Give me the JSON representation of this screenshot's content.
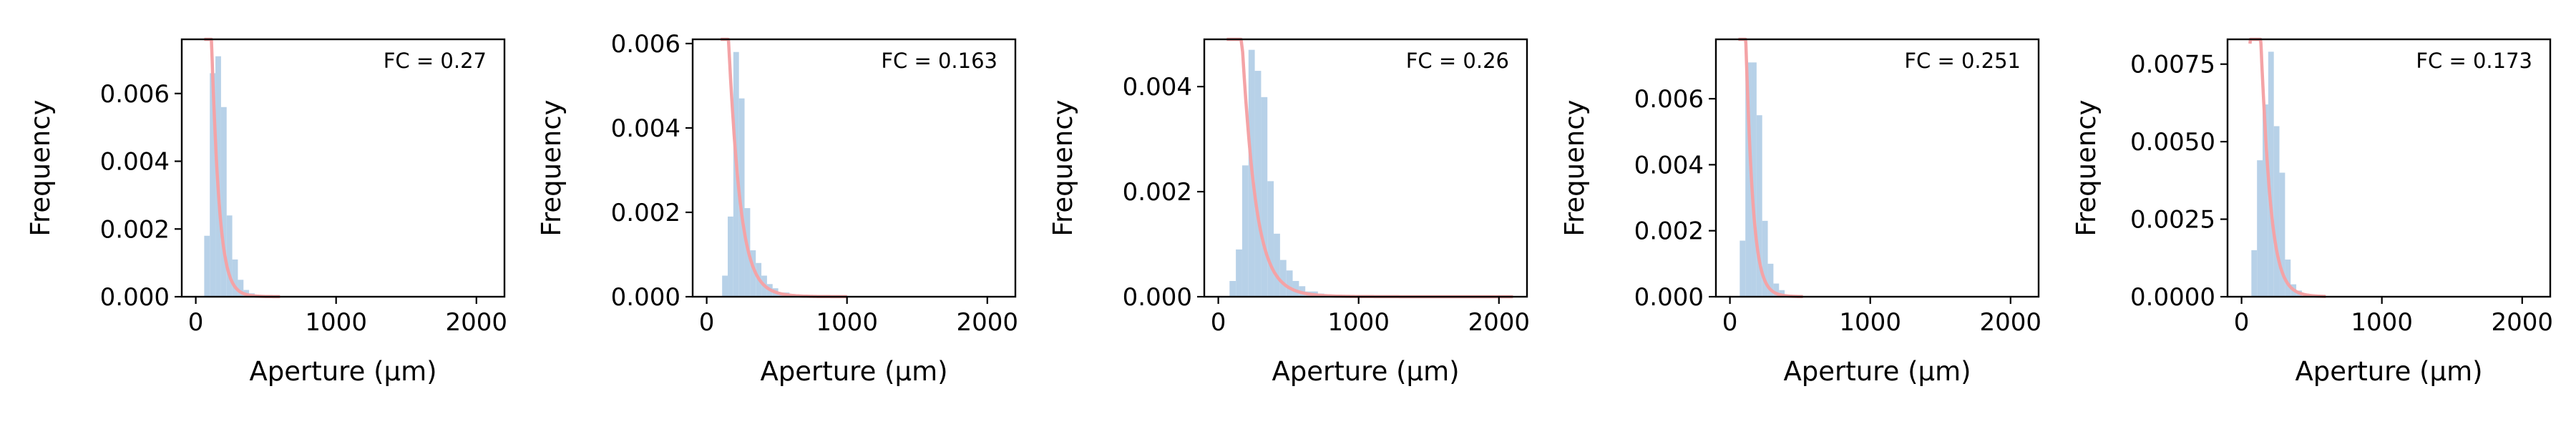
{
  "colors": {
    "histogram": "#b7d1e8",
    "fit_line": "#f4a3a6",
    "axes": "#000000"
  },
  "chart_data": [
    {
      "type": "histogram",
      "xlabel": "Aperture (μm)",
      "ylabel": "Frequency",
      "annotation": "FC = 0.27",
      "xlim": [
        -100,
        2200
      ],
      "ylim": [
        0,
        0.0076
      ],
      "xticks": [
        0,
        1000,
        2000
      ],
      "yticks": [
        0.0,
        0.002,
        0.004,
        0.006
      ],
      "ytick_labels": [
        "0.000",
        "0.002",
        "0.004",
        "0.006"
      ],
      "bin_width": 40,
      "bins": [
        [
          60,
          0.0018
        ],
        [
          100,
          0.0066
        ],
        [
          140,
          0.0071
        ],
        [
          180,
          0.0056
        ],
        [
          220,
          0.0024
        ],
        [
          260,
          0.0011
        ],
        [
          300,
          0.0005
        ],
        [
          340,
          0.0002
        ],
        [
          380,
          0.0001
        ],
        [
          420,
          5e-05
        ]
      ],
      "fit": {
        "mode": 120,
        "peak": 0.0066,
        "sigma": 0.5,
        "x_start": 60,
        "x_end": 600
      }
    },
    {
      "type": "histogram",
      "xlabel": "Aperture (μm)",
      "ylabel": "Frequency",
      "annotation": "FC = 0.163",
      "xlim": [
        -100,
        2200
      ],
      "ylim": [
        0,
        0.0061
      ],
      "xticks": [
        0,
        1000,
        2000
      ],
      "yticks": [
        0.0,
        0.002,
        0.004,
        0.006
      ],
      "ytick_labels": [
        "0.000",
        "0.002",
        "0.004",
        "0.006"
      ],
      "bin_width": 40,
      "bins": [
        [
          110,
          0.0005
        ],
        [
          150,
          0.0019
        ],
        [
          190,
          0.0058
        ],
        [
          230,
          0.0047
        ],
        [
          270,
          0.0021
        ],
        [
          310,
          0.0011
        ],
        [
          350,
          0.0008
        ],
        [
          390,
          0.0005
        ],
        [
          430,
          0.0003
        ],
        [
          470,
          0.0002
        ],
        [
          510,
          0.0001
        ],
        [
          550,
          0.0001
        ],
        [
          590,
          5e-05
        ]
      ],
      "fit": {
        "mode": 175,
        "peak": 0.0049,
        "sigma": 0.55,
        "x_start": 100,
        "x_end": 1000
      }
    },
    {
      "type": "histogram",
      "xlabel": "Aperture (μm)",
      "ylabel": "Frequency",
      "annotation": "FC = 0.26",
      "xlim": [
        -100,
        2200
      ],
      "ylim": [
        0,
        0.0049
      ],
      "xticks": [
        0,
        1000,
        2000
      ],
      "yticks": [
        0.0,
        0.002,
        0.004
      ],
      "ytick_labels": [
        "0.000",
        "0.002",
        "0.004"
      ],
      "bin_width": 45,
      "bins": [
        [
          80,
          0.0003
        ],
        [
          125,
          0.0009
        ],
        [
          170,
          0.0025
        ],
        [
          215,
          0.0047
        ],
        [
          260,
          0.0043
        ],
        [
          305,
          0.0038
        ],
        [
          350,
          0.0022
        ],
        [
          395,
          0.0012
        ],
        [
          440,
          0.0007
        ],
        [
          485,
          0.0005
        ],
        [
          530,
          0.0003
        ],
        [
          575,
          0.0002
        ],
        [
          620,
          0.0001
        ],
        [
          665,
          0.0001
        ],
        [
          710,
          6e-05
        ],
        [
          755,
          4e-05
        ],
        [
          800,
          3e-05
        ]
      ],
      "fit": {
        "mode": 200,
        "peak": 0.0036,
        "sigma": 0.6,
        "x_start": 60,
        "x_end": 2100
      }
    },
    {
      "type": "histogram",
      "xlabel": "Aperture (μm)",
      "ylabel": "Frequency",
      "annotation": "FC = 0.251",
      "xlim": [
        -100,
        2200
      ],
      "ylim": [
        0,
        0.0078
      ],
      "xticks": [
        0,
        1000,
        2000
      ],
      "yticks": [
        0.0,
        0.002,
        0.004,
        0.006
      ],
      "ytick_labels": [
        "0.000",
        "0.002",
        "0.004",
        "0.006"
      ],
      "bin_width": 40,
      "bins": [
        [
          70,
          0.0017
        ],
        [
          110,
          0.0071
        ],
        [
          150,
          0.0071
        ],
        [
          190,
          0.0055
        ],
        [
          230,
          0.0023
        ],
        [
          270,
          0.001
        ],
        [
          310,
          0.0004
        ],
        [
          350,
          0.0002
        ]
      ],
      "fit": {
        "mode": 115,
        "peak": 0.0075,
        "sigma": 0.5,
        "x_start": 60,
        "x_end": 520
      }
    },
    {
      "type": "histogram",
      "xlabel": "Aperture (μm)",
      "ylabel": "Frequency",
      "annotation": "FC = 0.173",
      "xlim": [
        -100,
        2200
      ],
      "ylim": [
        0,
        0.0083
      ],
      "xticks": [
        0,
        1000,
        2000
      ],
      "yticks": [
        0.0,
        0.0025,
        0.005,
        0.0075
      ],
      "ytick_labels": [
        "0.0000",
        "0.0025",
        "0.0050",
        "0.0075"
      ],
      "bin_width": 40,
      "bins": [
        [
          70,
          0.0015
        ],
        [
          110,
          0.0044
        ],
        [
          150,
          0.0062
        ],
        [
          190,
          0.0079
        ],
        [
          230,
          0.0055
        ],
        [
          270,
          0.004
        ],
        [
          310,
          0.0012
        ],
        [
          350,
          0.0004
        ],
        [
          390,
          0.0002
        ]
      ],
      "fit": {
        "mode": 150,
        "peak": 0.007,
        "sigma": 0.5,
        "x_start": 60,
        "x_end": 600
      }
    }
  ]
}
